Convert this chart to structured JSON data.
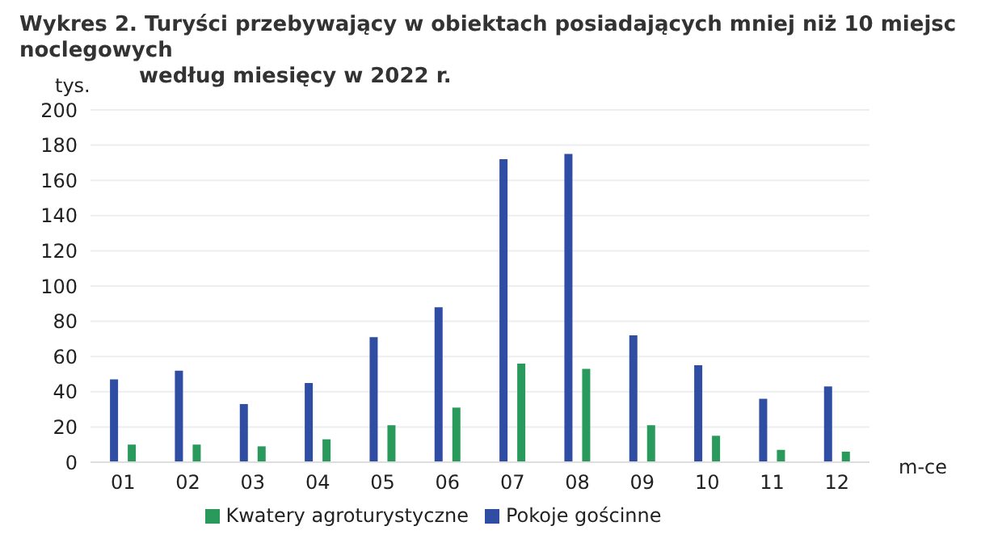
{
  "chart_data": {
    "type": "bar",
    "title": "Wykres 2. Turyści przebywający w obiektach posiadających mniej niż 10 miejsc noclegowych\nwedług miesięcy w 2022 r.",
    "ylabel": "tys.",
    "xlabel": "m-ce",
    "categories": [
      "01",
      "02",
      "03",
      "04",
      "05",
      "06",
      "07",
      "08",
      "09",
      "10",
      "11",
      "12"
    ],
    "series": [
      {
        "name": "Pokoje gościnne",
        "color": "#2e4da3",
        "values": [
          47,
          52,
          33,
          45,
          71,
          88,
          172,
          175,
          72,
          55,
          36,
          43
        ]
      },
      {
        "name": "Kwatery agroturystyczne",
        "color": "#2a9a5c",
        "values": [
          10,
          10,
          9,
          13,
          21,
          31,
          56,
          53,
          21,
          15,
          7,
          6
        ]
      }
    ],
    "ylim": [
      0,
      200
    ],
    "yticks": [
      0,
      20,
      40,
      60,
      80,
      100,
      120,
      140,
      160,
      180,
      200
    ],
    "grid": "y",
    "legend": "bottom"
  }
}
